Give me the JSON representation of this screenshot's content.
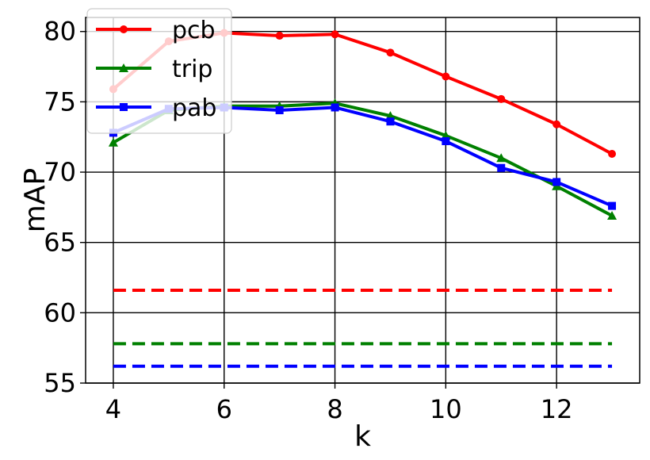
{
  "chart_data": {
    "type": "line",
    "title": "",
    "xlabel": "k",
    "ylabel": "mAP",
    "xlim": [
      3.5,
      13.5
    ],
    "ylim": [
      55,
      81
    ],
    "xticks": [
      4,
      6,
      8,
      10,
      12
    ],
    "yticks": [
      55,
      60,
      65,
      70,
      75,
      80
    ],
    "grid": true,
    "legend_position": "top-left",
    "x": [
      4,
      5,
      6,
      7,
      8,
      9,
      10,
      11,
      12,
      13
    ],
    "series": [
      {
        "name": "pcb",
        "color": "#ff0000",
        "marker": "circle",
        "values": [
          75.9,
          79.3,
          79.9,
          79.7,
          79.8,
          78.5,
          76.8,
          75.2,
          73.4,
          71.3
        ],
        "baseline": 61.6
      },
      {
        "name": "trip",
        "color": "#008000",
        "marker": "triangle",
        "values": [
          72.1,
          74.4,
          74.7,
          74.7,
          74.9,
          74.0,
          72.6,
          71.0,
          69.0,
          66.9
        ],
        "baseline": 57.8
      },
      {
        "name": "pab",
        "color": "#0000ff",
        "marker": "square",
        "values": [
          72.8,
          74.5,
          74.6,
          74.4,
          74.6,
          73.6,
          72.2,
          70.3,
          69.3,
          67.6
        ],
        "baseline": 56.2
      }
    ]
  }
}
